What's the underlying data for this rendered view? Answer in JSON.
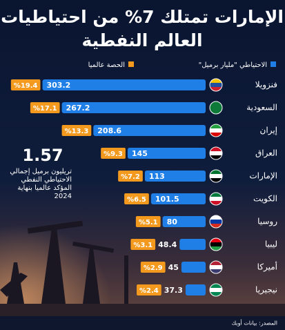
{
  "chart_data": {
    "type": "bar",
    "title": [
      "الإمارات تمتلك 7% من احتياطيات",
      "العالم النفطية"
    ],
    "categories": [
      "فنزويلا",
      "السعودية",
      "إيران",
      "العراق",
      "الإمارات",
      "الكويت",
      "روسيا",
      "ليبيا",
      "أميركا",
      "نيجيريا"
    ],
    "series": [
      {
        "name": "الاحتياطي \"مليار برميل\"",
        "color": "#1f7fe6",
        "values": [
          303.2,
          267.2,
          208.6,
          145,
          113,
          101.5,
          80,
          48.4,
          45,
          37.3
        ]
      },
      {
        "name": "الحصة عالميا",
        "color": "#f39a1e",
        "values": [
          19.4,
          17.1,
          13.3,
          9.3,
          7.2,
          6.5,
          5.1,
          3.1,
          2.9,
          2.4
        ],
        "value_labels": [
          "%19.4",
          "%17.1",
          "%13.3",
          "%9.3",
          "%7.2",
          "%6.5",
          "%5.1",
          "%3.1",
          "%2.9",
          "%2.4"
        ]
      }
    ],
    "annotation": {
      "value": "1.57",
      "text": [
        "تريليون برميل إجمالي",
        "الاحتياطي النفطي",
        "المؤكد عالميا بنهاية",
        "2024"
      ]
    },
    "source": "المصدر: بيانات أوبك"
  }
}
